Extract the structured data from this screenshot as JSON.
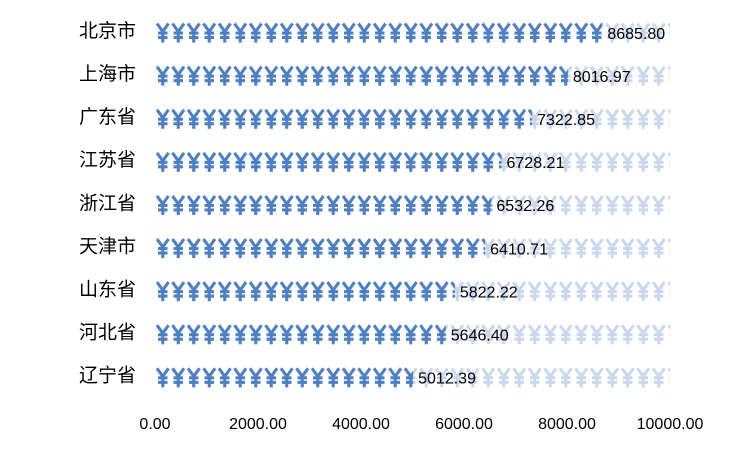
{
  "chart_data": {
    "type": "bar",
    "orientation": "horizontal",
    "categories": [
      "北京市",
      "上海市",
      "广东省",
      "江苏省",
      "浙江省",
      "天津市",
      "山东省",
      "河北省",
      "辽宁省"
    ],
    "values": [
      8685.8,
      8016.97,
      7322.85,
      6728.21,
      6532.26,
      6410.71,
      5822.22,
      5646.4,
      5012.39
    ],
    "value_labels": [
      "8685.80",
      "8016.97",
      "7322.85",
      "6728.21",
      "6532.26",
      "6410.71",
      "5822.22",
      "5646.40",
      "5012.39"
    ],
    "color": "#4f7fc0",
    "xlim": [
      0,
      10000
    ],
    "xticks": [
      {
        "value": 0,
        "label": "0.00"
      },
      {
        "value": 2000,
        "label": "2000.00"
      },
      {
        "value": 4000,
        "label": "4000.00"
      },
      {
        "value": 6000,
        "label": "6000.00"
      },
      {
        "value": 8000,
        "label": "8000.00"
      },
      {
        "value": 10000,
        "label": "10000.00"
      }
    ]
  }
}
